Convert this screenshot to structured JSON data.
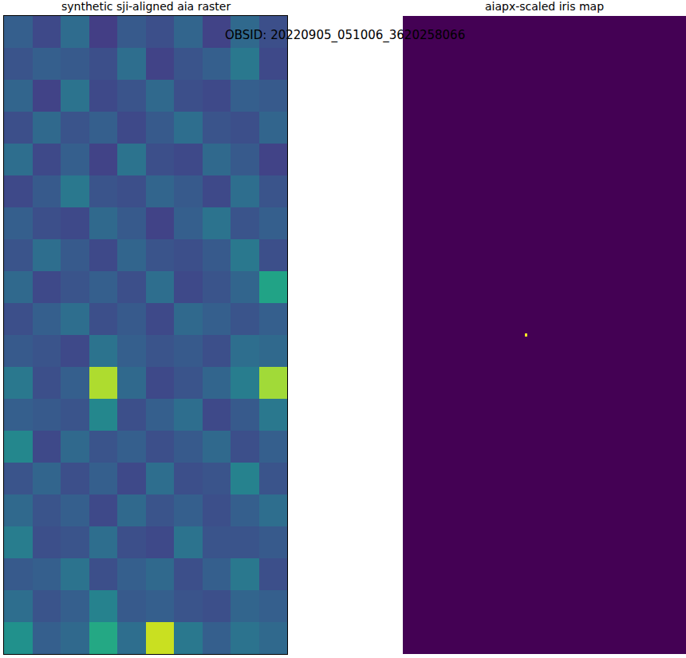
{
  "suptitle": "OBSID: 20220905_051006_3620258066",
  "chart_data": [
    {
      "type": "heatmap",
      "title": "synthetic sji-aligned aia raster",
      "color": "viridis",
      "tick_labels": false,
      "x": [
        0,
        10,
        20,
        30,
        40,
        50,
        60,
        70,
        80,
        90,
        100
      ],
      "y": [
        0,
        11.25,
        22.5,
        33.75,
        45,
        56.25,
        67.5,
        78.75,
        90,
        101.25,
        112.5,
        123.75,
        135,
        146.25,
        157.5,
        168.75,
        180,
        191.25,
        202.5,
        213.75,
        225
      ],
      "xlim": [
        0,
        100
      ],
      "ylim": [
        225,
        0
      ],
      "zlim": [
        0,
        1
      ],
      "z": [
        [
          0.3,
          0.22,
          0.35,
          0.18,
          0.28,
          0.24,
          0.32,
          0.2,
          0.34,
          0.24
        ],
        [
          0.26,
          0.3,
          0.28,
          0.24,
          0.36,
          0.2,
          0.26,
          0.3,
          0.4,
          0.22
        ],
        [
          0.32,
          0.2,
          0.38,
          0.22,
          0.26,
          0.34,
          0.24,
          0.22,
          0.3,
          0.28
        ],
        [
          0.24,
          0.34,
          0.26,
          0.3,
          0.22,
          0.28,
          0.36,
          0.26,
          0.24,
          0.32
        ],
        [
          0.36,
          0.22,
          0.3,
          0.2,
          0.38,
          0.24,
          0.22,
          0.34,
          0.28,
          0.2
        ],
        [
          0.22,
          0.28,
          0.4,
          0.26,
          0.24,
          0.32,
          0.28,
          0.22,
          0.36,
          0.26
        ],
        [
          0.3,
          0.24,
          0.22,
          0.34,
          0.28,
          0.2,
          0.3,
          0.38,
          0.26,
          0.3
        ],
        [
          0.26,
          0.36,
          0.28,
          0.22,
          0.32,
          0.26,
          0.24,
          0.28,
          0.4,
          0.24
        ],
        [
          0.34,
          0.22,
          0.26,
          0.3,
          0.24,
          0.36,
          0.22,
          0.26,
          0.32,
          0.58
        ],
        [
          0.24,
          0.3,
          0.36,
          0.24,
          0.28,
          0.22,
          0.34,
          0.3,
          0.26,
          0.3
        ],
        [
          0.28,
          0.26,
          0.22,
          0.38,
          0.3,
          0.26,
          0.28,
          0.24,
          0.36,
          0.34
        ],
        [
          0.4,
          0.24,
          0.3,
          0.88,
          0.34,
          0.22,
          0.26,
          0.32,
          0.42,
          0.86
        ],
        [
          0.3,
          0.28,
          0.26,
          0.46,
          0.24,
          0.3,
          0.36,
          0.22,
          0.28,
          0.4
        ],
        [
          0.46,
          0.22,
          0.34,
          0.26,
          0.3,
          0.24,
          0.28,
          0.34,
          0.24,
          0.3
        ],
        [
          0.26,
          0.32,
          0.24,
          0.3,
          0.22,
          0.36,
          0.24,
          0.26,
          0.44,
          0.26
        ],
        [
          0.34,
          0.26,
          0.3,
          0.22,
          0.34,
          0.26,
          0.3,
          0.24,
          0.3,
          0.36
        ],
        [
          0.42,
          0.24,
          0.26,
          0.36,
          0.24,
          0.22,
          0.38,
          0.26,
          0.26,
          0.28
        ],
        [
          0.28,
          0.3,
          0.38,
          0.24,
          0.3,
          0.34,
          0.24,
          0.3,
          0.4,
          0.24
        ],
        [
          0.36,
          0.26,
          0.3,
          0.44,
          0.28,
          0.3,
          0.26,
          0.24,
          0.32,
          0.3
        ],
        [
          0.5,
          0.3,
          0.34,
          0.6,
          0.36,
          0.92,
          0.4,
          0.3,
          0.38,
          0.34
        ]
      ]
    },
    {
      "type": "heatmap",
      "title": "aiapx-scaled iris map",
      "color": "viridis",
      "tick_labels": false,
      "x": [
        0,
        43,
        44,
        100
      ],
      "y": [
        0,
        112,
        113,
        225
      ],
      "xlim": [
        0,
        100
      ],
      "ylim": [
        225,
        0
      ],
      "zlim": [
        0,
        1
      ],
      "z": [
        [
          0,
          0,
          0
        ],
        [
          0,
          1,
          0
        ],
        [
          0,
          0,
          0
        ]
      ]
    }
  ]
}
